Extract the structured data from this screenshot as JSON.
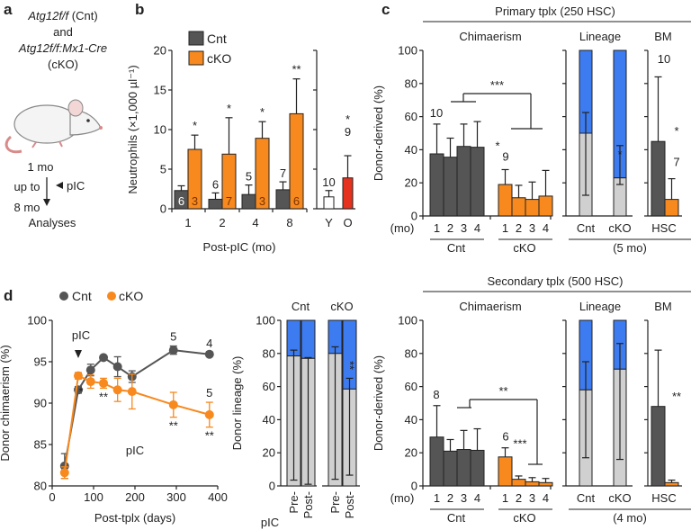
{
  "panel_labels": {
    "a": "a",
    "b": "b",
    "c": "c",
    "d": "d"
  },
  "panel_a": {
    "genotype_cnt": "Atg12f/f",
    "cnt_suffix": " (Cnt)",
    "and": "and",
    "genotype_cko": "Atg12f/f:Mx1-Cre",
    "cko_suffix": "(cKO)",
    "start": "1 mo",
    "up_to": "up to",
    "end": "8 mo",
    "pic": "pIC",
    "analyses": "Analyses"
  },
  "colors": {
    "cnt": "#555555",
    "cko": "#f7891e",
    "old": "#e5321f",
    "young": "#ffffff",
    "myeloid_blue": "#3d7cf0",
    "lymphoid_grey": "#d0d0d0"
  },
  "chart_data": [
    {
      "panel": "b",
      "type": "bar",
      "ylabel": "Neutrophils (×1,000 µl⁻¹)",
      "xlabel": "Post-pIC (mo)",
      "ylim": [
        0,
        20
      ],
      "yticks": [
        0,
        5,
        10,
        15,
        20
      ],
      "legend": [
        "Cnt",
        "cKO"
      ],
      "categories": [
        "1",
        "2",
        "4",
        "8"
      ],
      "series": [
        {
          "name": "Cnt",
          "values": [
            2.3,
            1.2,
            1.8,
            2.4
          ],
          "error_upper": [
            2.9,
            2.0,
            3.0,
            3.4
          ],
          "n": [
            "6",
            "6",
            "5",
            "7"
          ]
        },
        {
          "name": "cKO",
          "values": [
            7.5,
            6.9,
            8.9,
            12.0
          ],
          "error_upper": [
            9.3,
            11.5,
            11.0,
            16.4
          ],
          "n": [
            "3",
            "7",
            "3",
            "6"
          ],
          "significance": [
            "*",
            "*",
            "*",
            "**"
          ]
        }
      ],
      "age_comparison": {
        "categories": [
          "Y",
          "O"
        ],
        "values": [
          1.5,
          3.9
        ],
        "error_upper": [
          2.3,
          6.7
        ],
        "n": [
          "10",
          "9"
        ],
        "significance": [
          "",
          "*"
        ]
      }
    },
    {
      "panel": "c-primary",
      "type": "bar",
      "title": "Primary tplx (250 HSC)",
      "ylabel": "Donor-derived (%)",
      "ylim": [
        0,
        100
      ],
      "yticks": [
        0,
        20,
        40,
        60,
        80,
        100
      ],
      "chimaerism": {
        "title": "Chimaerism",
        "x_unit": "(mo)",
        "categories": [
          "1",
          "2",
          "3",
          "4"
        ],
        "groups": [
          {
            "name": "Cnt",
            "values": [
              37.5,
              35.5,
              42,
              41.5
            ],
            "error_upper": [
              55.5,
              47,
              55.5,
              57
            ],
            "n": "10",
            "significance": ""
          },
          {
            "name": "cKO",
            "values": [
              19,
              11,
              10,
              12
            ],
            "error_upper": [
              28,
              18.5,
              20.5,
              27.5
            ],
            "n": "9",
            "significance": "*"
          }
        ],
        "comparison": "***"
      },
      "lineage": {
        "title": "Lineage",
        "categories": [
          "Cnt",
          "cKO"
        ],
        "grey_values": [
          50,
          23
        ],
        "grey_error_lower": [
          12.5,
          19
        ],
        "blue_error_upper": [
          62.5,
          42.5
        ],
        "significance": [
          "",
          "*"
        ],
        "time": "(5 mo)"
      },
      "bm": {
        "title": "BM",
        "category": "HSC",
        "values": [
          45,
          10
        ],
        "error_upper": [
          84,
          22.5
        ],
        "n": [
          "10",
          "7"
        ],
        "significance": [
          "",
          "*"
        ]
      }
    },
    {
      "panel": "c-secondary",
      "type": "bar",
      "title": "Secondary tplx (500 HSC)",
      "ylabel": "Donor-derived (%)",
      "ylim": [
        0,
        100
      ],
      "yticks": [
        0,
        20,
        40,
        60,
        80,
        100
      ],
      "chimaerism": {
        "title": "Chimaerism",
        "x_unit": "(mo)",
        "categories": [
          "1",
          "2",
          "3",
          "4"
        ],
        "groups": [
          {
            "name": "Cnt",
            "values": [
              29.5,
              21,
              22,
              21.5
            ],
            "error_upper": [
              48.5,
              28,
              33.5,
              34.5
            ],
            "n": "8",
            "significance": ""
          },
          {
            "name": "cKO",
            "values": [
              17.5,
              4,
              2.5,
              2
            ],
            "error_upper": [
              23,
              6,
              5,
              4.5
            ],
            "n": "6",
            "significance": "***"
          }
        ],
        "comparison": "**"
      },
      "lineage": {
        "title": "Lineage",
        "categories": [
          "Cnt",
          "cKO"
        ],
        "grey_values": [
          58,
          70.5
        ],
        "grey_error_lower": [
          17,
          16
        ],
        "blue_error_upper": [
          75,
          86
        ],
        "significance": [
          "",
          ""
        ],
        "time": "(4 mo)"
      },
      "bm": {
        "title": "BM",
        "category": "HSC",
        "values": [
          48,
          2
        ],
        "error_upper": [
          82,
          3.5
        ],
        "n": [
          "",
          ""
        ],
        "significance": [
          "",
          "**"
        ]
      }
    },
    {
      "panel": "d-chimaerism",
      "type": "line",
      "ylabel": "Donor chimaerism (%)",
      "xlabel": "Post-tplx (days)",
      "xlim": [
        0,
        400
      ],
      "ylim": [
        80,
        100
      ],
      "xticks": [
        0,
        100,
        200,
        300,
        400
      ],
      "yticks": [
        80,
        85,
        90,
        95,
        100
      ],
      "pic_label": "pIC",
      "pic_day": 63,
      "pic_period_label": "pIC",
      "series": [
        {
          "name": "Cnt",
          "x": [
            30,
            63,
            93,
            124,
            158,
            193,
            293,
            380
          ],
          "y": [
            82.4,
            91.6,
            94.0,
            95.5,
            94.4,
            93.2,
            96.4,
            95.9
          ],
          "error": [
            1.5,
            0.4,
            0.7,
            0.2,
            1.2,
            0.7,
            0.5,
            0.2
          ],
          "n_labels": [
            {
              "x": 293,
              "text": "5"
            },
            {
              "x": 380,
              "text": "4"
            }
          ]
        },
        {
          "name": "cKO",
          "x": [
            30,
            63,
            93,
            124,
            158,
            193,
            293,
            380
          ],
          "y": [
            81.6,
            93.3,
            92.6,
            92.4,
            91.6,
            91.4,
            89.8,
            88.6
          ],
          "error": [
            0.7,
            0.4,
            0.8,
            0.6,
            1.4,
            2.1,
            1.5,
            1.5
          ],
          "n_labels": [
            {
              "x": 380,
              "text": "5"
            }
          ]
        }
      ],
      "significance": [
        {
          "x": 63,
          "text": "*"
        },
        {
          "x": 124,
          "text": "**"
        },
        {
          "x": 293,
          "text": "**"
        },
        {
          "x": 380,
          "text": "**"
        }
      ]
    },
    {
      "panel": "d-lineage",
      "type": "bar",
      "ylabel": "Donor lineage (%)",
      "ylim": [
        0,
        100
      ],
      "yticks": [
        0,
        20,
        40,
        60,
        80,
        100
      ],
      "x_unit": "pIC",
      "groups": [
        {
          "name": "Cnt",
          "categories": [
            "Pre-",
            "Post-"
          ],
          "grey_values": [
            78.5,
            77
          ],
          "grey_error_lower": [
            3.5,
            1
          ],
          "blue_error_upper": [
            82,
            77.5
          ],
          "significance": [
            "",
            ""
          ]
        },
        {
          "name": "cKO",
          "categories": [
            "Pre-",
            "Post-"
          ],
          "grey_values": [
            80,
            58.5
          ],
          "grey_error_lower": [
            4,
            6.5
          ],
          "blue_error_upper": [
            84,
            65
          ],
          "significance": [
            "",
            "**"
          ]
        }
      ]
    }
  ]
}
